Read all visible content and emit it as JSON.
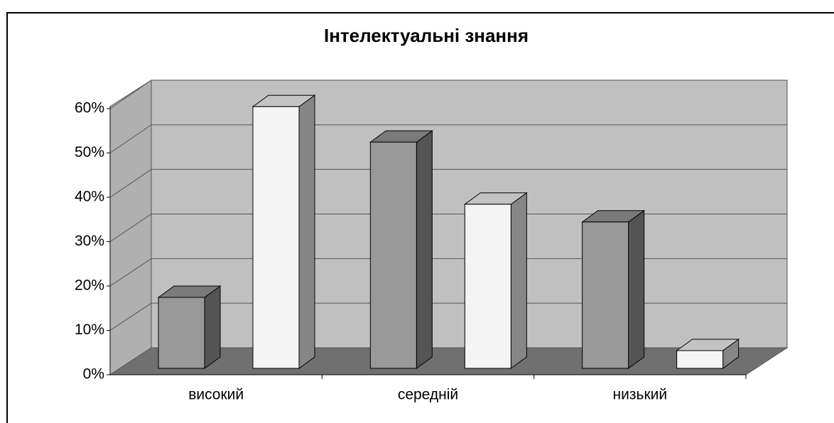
{
  "chart_data": {
    "type": "bar3d",
    "title": "Інтелектуальні знання",
    "categories": [
      "високий",
      "середній",
      "низький"
    ],
    "series": [
      {
        "color": "#999999",
        "values": [
          16,
          51,
          33
        ]
      },
      {
        "color": "#f4f4f4",
        "values": [
          59,
          37,
          4
        ]
      }
    ],
    "ylim": [
      0,
      60
    ],
    "yticks": [
      {
        "value": 0,
        "label": "0%"
      },
      {
        "value": 10,
        "label": "10%"
      },
      {
        "value": 20,
        "label": "20%"
      },
      {
        "value": 30,
        "label": "30%"
      },
      {
        "value": 40,
        "label": "40%"
      },
      {
        "value": 50,
        "label": "50%"
      },
      {
        "value": 60,
        "label": "60%"
      }
    ],
    "grid": true
  }
}
